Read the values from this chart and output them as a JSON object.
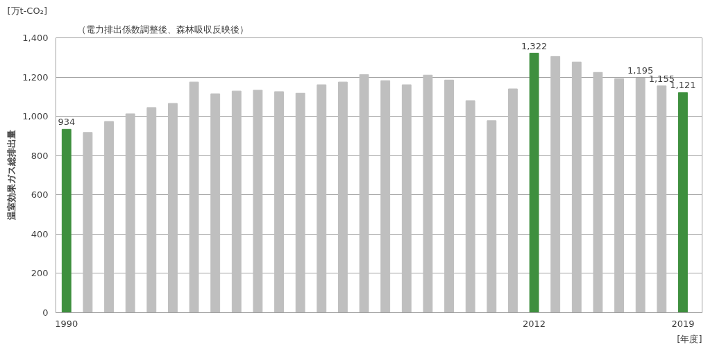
{
  "chart_data": {
    "type": "bar",
    "subtitle": "（電力排出係数調整後、森林吸収反映後）",
    "ylabel": "温室効果ガス総排出量",
    "xlabel": "[年度]",
    "annotations": [
      "[万t-CO₂]"
    ],
    "categories": [
      "1990",
      null,
      null,
      null,
      null,
      null,
      null,
      null,
      null,
      null,
      null,
      null,
      null,
      null,
      null,
      null,
      null,
      null,
      null,
      null,
      null,
      null,
      "2012",
      null,
      null,
      null,
      null,
      null,
      null,
      "2019"
    ],
    "values": [
      934,
      918,
      974,
      1013,
      1045,
      1066,
      1175,
      1115,
      1129,
      1133,
      1126,
      1118,
      1161,
      1175,
      1213,
      1182,
      1161,
      1210,
      1185,
      1080,
      978,
      1140,
      1322,
      1305,
      1277,
      1224,
      1192,
      1195,
      1155,
      1121
    ],
    "colors": [
      "#3e8f3e",
      "#bfbfbf",
      "#bfbfbf",
      "#bfbfbf",
      "#bfbfbf",
      "#bfbfbf",
      "#bfbfbf",
      "#bfbfbf",
      "#bfbfbf",
      "#bfbfbf",
      "#bfbfbf",
      "#bfbfbf",
      "#bfbfbf",
      "#bfbfbf",
      "#bfbfbf",
      "#bfbfbf",
      "#bfbfbf",
      "#bfbfbf",
      "#bfbfbf",
      "#bfbfbf",
      "#bfbfbf",
      "#bfbfbf",
      "#3e8f3e",
      "#bfbfbf",
      "#bfbfbf",
      "#bfbfbf",
      "#bfbfbf",
      "#bfbfbf",
      "#bfbfbf",
      "#3e8f3e"
    ],
    "value_labels": [
      "934",
      null,
      null,
      null,
      null,
      null,
      null,
      null,
      null,
      null,
      null,
      null,
      null,
      null,
      null,
      null,
      null,
      null,
      null,
      null,
      null,
      null,
      "1,322",
      null,
      null,
      null,
      null,
      "1,195",
      "1,155",
      "1,121"
    ],
    "ylim": [
      0,
      1400
    ],
    "yticks": [
      0,
      {
        "value": 200,
        "label": "200"
      },
      {
        "value": 400,
        "label": "400"
      },
      {
        "value": 600,
        "label": "600"
      },
      {
        "value": 800,
        "label": "800"
      },
      {
        "value": 1000,
        "label": "1,000"
      },
      {
        "value": 1200,
        "label": "1,200"
      },
      {
        "value": 1400,
        "label": "1,400"
      }
    ],
    "grid": "y"
  }
}
